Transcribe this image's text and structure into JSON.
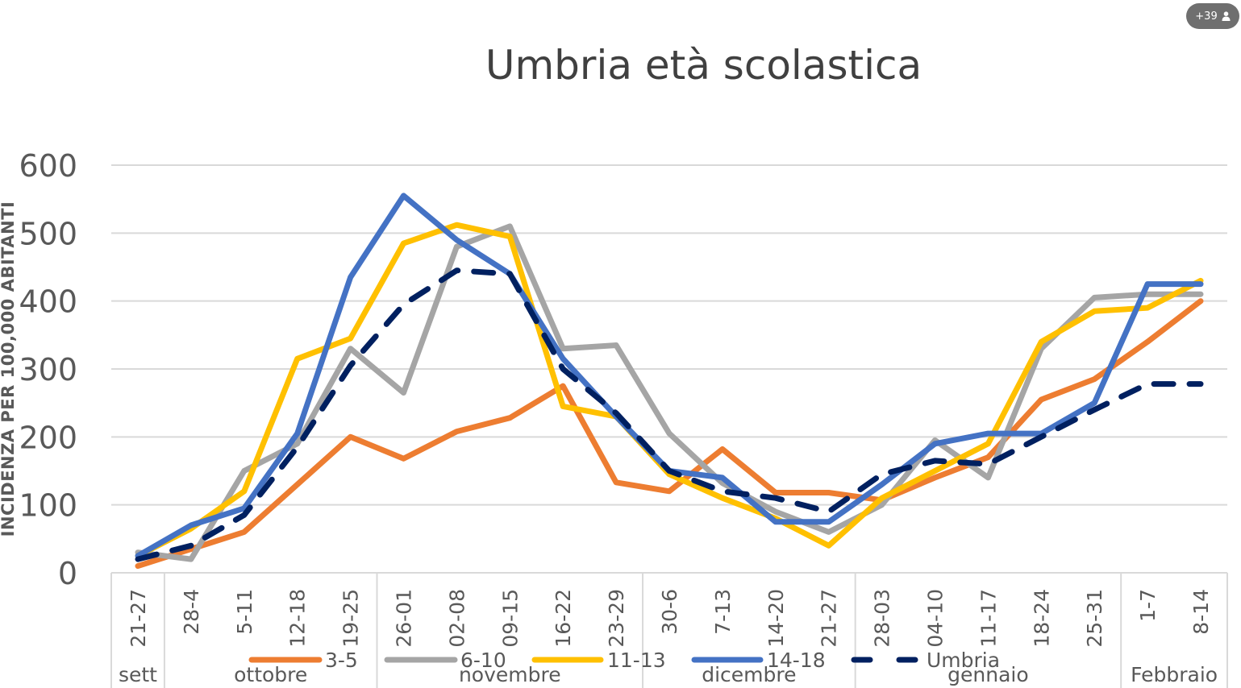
{
  "overlay": {
    "participants_count": "+39",
    "participants_icon": "person-icon"
  },
  "chart_data": {
    "type": "line",
    "title": "Umbria età scolastica",
    "ylabel": "INCIDENZA PER 100,000 ABITANTI",
    "xlabel": "",
    "ylim": [
      0,
      600
    ],
    "yticks": [
      0,
      100,
      200,
      300,
      400,
      500,
      600
    ],
    "grid": true,
    "legend_position": "bottom",
    "categories": [
      "21-27",
      "28-4",
      "5-11",
      "12-18",
      "19-25",
      "26-01",
      "02-08",
      "09-15",
      "16-22",
      "23-29",
      "30-6",
      "7-13",
      "14-20",
      "21-27",
      "28-03",
      "04-10",
      "11-17",
      "18-24",
      "25-31",
      "1-7",
      "8-14"
    ],
    "month_groups": [
      {
        "label": "sett",
        "count": 1
      },
      {
        "label": "ottobre",
        "count": 4
      },
      {
        "label": "novembre",
        "count": 5
      },
      {
        "label": "dicembre",
        "count": 4
      },
      {
        "label": "gennaio",
        "count": 5
      },
      {
        "label": "Febbraio",
        "count": 2
      }
    ],
    "series": [
      {
        "name": "3-5",
        "color": "#ED7D31",
        "dashed": false,
        "values": [
          10,
          35,
          60,
          130,
          200,
          168,
          208,
          228,
          275,
          133,
          120,
          182,
          118,
          118,
          107,
          140,
          170,
          255,
          285,
          340,
          400
        ]
      },
      {
        "name": "6-10",
        "color": "#A5A5A5",
        "dashed": false,
        "values": [
          30,
          20,
          150,
          190,
          330,
          265,
          480,
          510,
          330,
          335,
          205,
          132,
          90,
          60,
          100,
          195,
          140,
          330,
          405,
          410,
          410
        ]
      },
      {
        "name": "11-13",
        "color": "#FFC000",
        "dashed": false,
        "values": [
          25,
          65,
          120,
          315,
          345,
          485,
          512,
          495,
          245,
          230,
          145,
          110,
          80,
          40,
          110,
          150,
          190,
          340,
          385,
          390,
          430
        ]
      },
      {
        "name": "14-18",
        "color": "#4472C4",
        "dashed": false,
        "values": [
          25,
          70,
          95,
          205,
          435,
          555,
          490,
          440,
          315,
          230,
          150,
          140,
          75,
          75,
          130,
          190,
          205,
          205,
          250,
          425,
          425
        ]
      },
      {
        "name": "Umbria",
        "color": "#002060",
        "dashed": true,
        "values": [
          20,
          40,
          85,
          185,
          305,
          395,
          445,
          440,
          300,
          235,
          150,
          120,
          110,
          90,
          145,
          165,
          160,
          200,
          240,
          278,
          278
        ]
      }
    ]
  }
}
